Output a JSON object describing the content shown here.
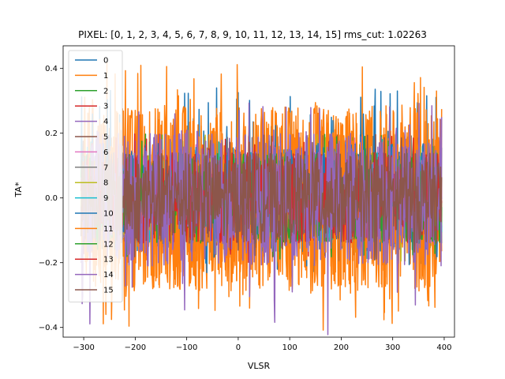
{
  "chart_data": {
    "type": "line",
    "title": "PIXEL: [0, 1, 2, 3, 4, 5, 6, 7, 8, 9, 10, 11, 12, 13, 14, 15]    rms_cut: 1.02263",
    "xlabel": "VLSR",
    "ylabel": "TA*",
    "xlim": [
      -340,
      420
    ],
    "ylim": [
      -0.43,
      0.47
    ],
    "xticks": [
      -300,
      -200,
      -100,
      0,
      100,
      200,
      300,
      400
    ],
    "yticks": [
      -0.4,
      -0.2,
      0.0,
      0.2,
      0.4
    ],
    "xtick_labels": [
      "−300",
      "−200",
      "−100",
      "0",
      "100",
      "200",
      "300",
      "400"
    ],
    "ytick_labels": [
      "−0.4",
      "−0.2",
      "0.0",
      "0.2",
      "0.4"
    ],
    "x_range": [
      -305,
      395
    ],
    "legend_position": "upper-left",
    "grid": false,
    "series": [
      {
        "name": "0",
        "color": "#1f77b4",
        "envelope": [
          -0.23,
          0.34
        ]
      },
      {
        "name": "1",
        "color": "#ff7f0e",
        "envelope": [
          -0.41,
          0.42
        ]
      },
      {
        "name": "2",
        "color": "#2ca02c",
        "envelope": [
          -0.2,
          0.2
        ]
      },
      {
        "name": "3",
        "color": "#d62728",
        "envelope": [
          -0.2,
          0.2
        ]
      },
      {
        "name": "4",
        "color": "#9467bd",
        "envelope": [
          -0.2,
          0.2
        ]
      },
      {
        "name": "5",
        "color": "#8c564b",
        "envelope": [
          -0.2,
          0.2
        ]
      },
      {
        "name": "6",
        "color": "#e377c2",
        "envelope": [
          -0.2,
          0.2
        ]
      },
      {
        "name": "7",
        "color": "#7f7f7f",
        "envelope": [
          -0.2,
          0.2
        ]
      },
      {
        "name": "8",
        "color": "#bcbd22",
        "envelope": [
          -0.2,
          0.2
        ]
      },
      {
        "name": "9",
        "color": "#17becf",
        "envelope": [
          -0.2,
          0.2
        ]
      },
      {
        "name": "10",
        "color": "#1f77b4",
        "envelope": [
          -0.24,
          0.34
        ]
      },
      {
        "name": "11",
        "color": "#ff7f0e",
        "envelope": [
          -0.41,
          0.42
        ]
      },
      {
        "name": "12",
        "color": "#2ca02c",
        "envelope": [
          -0.2,
          0.2
        ]
      },
      {
        "name": "13",
        "color": "#d62728",
        "envelope": [
          -0.2,
          0.2
        ]
      },
      {
        "name": "14",
        "color": "#9467bd",
        "envelope": [
          -0.44,
          0.3
        ]
      },
      {
        "name": "15",
        "color": "#8c564b",
        "envelope": [
          -0.2,
          0.2
        ]
      }
    ]
  }
}
